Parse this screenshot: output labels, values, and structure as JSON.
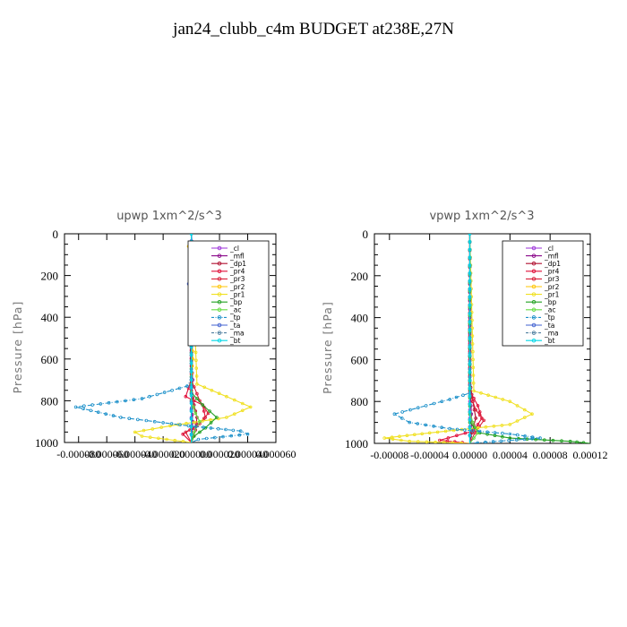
{
  "title": "jan24_clubb_c4m  BUDGET at238E,27N",
  "chart_data": [
    {
      "type": "line",
      "title": "upwp   1xm^2/s^3",
      "ylabel": "Pressure [hPa]",
      "ylim": [
        1000,
        0
      ],
      "xlim": [
        -9e-05,
        6e-05
      ],
      "y_ticks": [
        0,
        200,
        400,
        600,
        800,
        1000
      ],
      "x_tick_labels": [
        "-0.000080",
        "-0.000060",
        "-0.000040",
        "-0.000020",
        "0.000000",
        "0.000020",
        "0.000040",
        "0.000060"
      ],
      "legend_position": "upper-right",
      "series": [
        {
          "name": "_cl",
          "color": "#9b30d9",
          "x": [
            0,
            0,
            0,
            0,
            0,
            0,
            0,
            0,
            0,
            0
          ],
          "y": [
            0,
            100,
            200,
            300,
            400,
            500,
            600,
            700,
            800,
            1000
          ]
        },
        {
          "name": "_mfl",
          "color": "#8b0a8b",
          "x": [
            0,
            0,
            0,
            0,
            1e-06,
            0,
            1e-06,
            0
          ],
          "y": [
            0,
            200,
            400,
            600,
            700,
            800,
            900,
            1000
          ]
        },
        {
          "name": "_dp1",
          "color": "#b01030",
          "x": [
            0,
            0,
            0,
            2e-06,
            4e-06,
            3e-06,
            0
          ],
          "y": [
            0,
            400,
            750,
            820,
            880,
            940,
            1000
          ]
        },
        {
          "name": "_pr4",
          "color": "#e0103a",
          "x": [
            0,
            0,
            -4e-06,
            8e-06,
            1e-05,
            4e-06,
            -6e-06,
            0
          ],
          "y": [
            0,
            700,
            780,
            820,
            880,
            920,
            960,
            1000
          ]
        },
        {
          "name": "_pr3",
          "color": "#d9203a",
          "x": [
            0,
            0,
            6e-06,
            1.2e-05,
            6e-06,
            -4e-06,
            0
          ],
          "y": [
            0,
            700,
            800,
            860,
            910,
            950,
            1000
          ]
        },
        {
          "name": "_pr2",
          "color": "#ffc400",
          "x": [
            -2e-06,
            0,
            0,
            1e-06,
            0
          ],
          "y": [
            60,
            100,
            300,
            600,
            700
          ]
        },
        {
          "name": "_pr1",
          "color": "#f0e020",
          "x": [
            0,
            4e-06,
            2.5e-05,
            4.2e-05,
            2.5e-05,
            -1.5e-05,
            -4e-05,
            -3.5e-05,
            0
          ],
          "y": [
            0,
            720,
            780,
            830,
            880,
            920,
            950,
            970,
            1000
          ]
        },
        {
          "name": "_bp",
          "color": "#22a022",
          "x": [
            0,
            0,
            8e-06,
            1.8e-05,
            1e-05,
            2e-06,
            0
          ],
          "y": [
            0,
            760,
            820,
            880,
            930,
            970,
            1000
          ]
        },
        {
          "name": "_ac",
          "color": "#66dd44",
          "x": [
            0,
            0,
            3e-06,
            6e-06,
            2e-06,
            0
          ],
          "y": [
            0,
            800,
            860,
            900,
            950,
            1000
          ]
        },
        {
          "name": "_tp",
          "color": "#1a8fc9",
          "x": [
            0,
            0,
            -3e-06,
            -3.5e-05,
            -8.2e-05,
            -5e-05,
            -2e-06,
            3.5e-05,
            4e-05,
            5e-06,
            0
          ],
          "y": [
            0,
            700,
            730,
            790,
            830,
            880,
            920,
            945,
            960,
            985,
            1000
          ]
        },
        {
          "name": "_ta",
          "color": "#4060d0",
          "x": [
            0,
            2e-06,
            -2e-06,
            0,
            0
          ],
          "y": [
            0,
            150,
            240,
            300,
            1000
          ]
        },
        {
          "name": "_ma",
          "color": "#5080a0",
          "x": [
            0,
            0,
            0,
            0
          ],
          "y": [
            0,
            300,
            700,
            1000
          ]
        },
        {
          "name": "_bt",
          "color": "#00d8e8",
          "x": [
            0,
            0,
            0,
            0
          ],
          "y": [
            0,
            300,
            700,
            1000
          ]
        }
      ]
    },
    {
      "type": "line",
      "title": "vpwp   1xm^2/s^3",
      "ylabel": "Pressure [hPa]",
      "ylim": [
        1000,
        0
      ],
      "xlim": [
        -9.5e-05,
        0.00012
      ],
      "y_ticks": [
        0,
        200,
        400,
        600,
        800,
        1000
      ],
      "x_tick_labels": [
        "-0.00008",
        "-0.00004",
        "0.00000",
        "0.00004",
        "0.00008",
        "0.00012"
      ],
      "legend_position": "upper-right",
      "series": [
        {
          "name": "_cl",
          "color": "#9b30d9",
          "x": [
            0,
            0,
            0,
            0,
            0,
            0
          ],
          "y": [
            0,
            200,
            400,
            600,
            800,
            1000
          ]
        },
        {
          "name": "_mfl",
          "color": "#8b0a8b",
          "x": [
            0,
            0,
            0,
            2e-06,
            0
          ],
          "y": [
            0,
            400,
            700,
            900,
            1000
          ]
        },
        {
          "name": "_dp1",
          "color": "#b01030",
          "x": [
            0,
            0,
            3e-06,
            6e-06,
            2e-06,
            0
          ],
          "y": [
            0,
            700,
            800,
            880,
            950,
            1000
          ]
        },
        {
          "name": "_pr4",
          "color": "#e0103a",
          "x": [
            0,
            0,
            8e-06,
            1.2e-05,
            4e-06,
            -3e-05,
            0
          ],
          "y": [
            0,
            750,
            820,
            880,
            940,
            985,
            1000
          ]
        },
        {
          "name": "_pr3",
          "color": "#d9203a",
          "x": [
            0,
            0,
            6e-06,
            1.4e-05,
            5e-06,
            0
          ],
          "y": [
            0,
            760,
            840,
            890,
            950,
            1000
          ]
        },
        {
          "name": "_pr2",
          "color": "#ffc400",
          "x": [
            0,
            0,
            0,
            0
          ],
          "y": [
            0,
            300,
            700,
            1000
          ]
        },
        {
          "name": "_pr1",
          "color": "#f0e020",
          "x": [
            0,
            4e-06,
            4e-05,
            6.2e-05,
            4e-05,
            -4e-05,
            -8.5e-05,
            -6e-05,
            0
          ],
          "y": [
            0,
            750,
            800,
            860,
            910,
            950,
            975,
            990,
            1000
          ]
        },
        {
          "name": "_bp",
          "color": "#22a022",
          "x": [
            0,
            0,
            1e-05,
            4e-05,
            0.0001,
            0.00012
          ],
          "y": [
            0,
            900,
            950,
            975,
            990,
            1000
          ]
        },
        {
          "name": "_ac",
          "color": "#66dd44",
          "x": [
            0,
            0,
            3e-06,
            8e-06,
            0
          ],
          "y": [
            0,
            850,
            900,
            950,
            1000
          ]
        },
        {
          "name": "_tp",
          "color": "#1a8fc9",
          "x": [
            0,
            0,
            -2e-05,
            -7.5e-05,
            -6e-05,
            -2e-05,
            4e-05,
            7e-05,
            0
          ],
          "y": [
            0,
            760,
            790,
            860,
            900,
            930,
            955,
            975,
            1000
          ]
        },
        {
          "name": "_ta",
          "color": "#4060d0",
          "x": [
            0,
            0,
            0,
            0
          ],
          "y": [
            0,
            300,
            700,
            1000
          ]
        },
        {
          "name": "_ma",
          "color": "#5080a0",
          "x": [
            0,
            0,
            0,
            0
          ],
          "y": [
            0,
            300,
            700,
            1000
          ]
        },
        {
          "name": "_bt",
          "color": "#00d8e8",
          "x": [
            0,
            0,
            0,
            0
          ],
          "y": [
            0,
            300,
            700,
            1000
          ]
        }
      ]
    }
  ]
}
